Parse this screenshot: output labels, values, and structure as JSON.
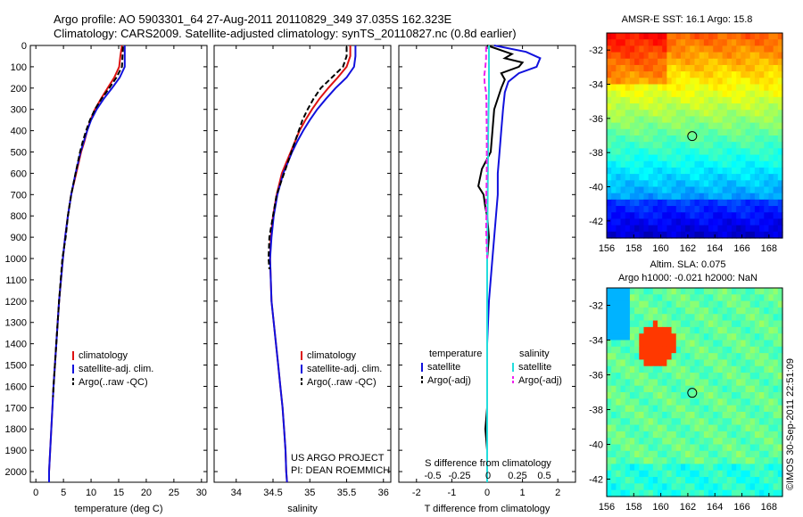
{
  "header": {
    "line1": "Argo profile: AO 5903301_64 27-Aug-2011 20110829_349 37.035S 162.323E",
    "line2": "Climatology: CARS2009. Satellite-adjusted climatology: synTS_20110827.nc (0.8d earlier)"
  },
  "side_stamp": "©IMOS 30-Sep-2011 22:51:09",
  "map_titles": {
    "sst": "AMSR-E SST: 16.1  Argo: 15.8",
    "sla_line1": "Altim. SLA: 0.075",
    "sla_line2": "Argo h1000: -0.021  h2000: NaN"
  },
  "colors": {
    "climatology": "#dd1111",
    "satellite": "#1111dd",
    "argo": "#000000",
    "sal_satellite": "#22dddd",
    "sal_argo": "#ee22ee"
  },
  "chart_data": [
    {
      "type": "line",
      "panel": "temperature",
      "xlabel": "temperature (deg C)",
      "xlim": [
        -1,
        31
      ],
      "xticks": [
        0,
        5,
        10,
        15,
        20,
        25,
        30
      ],
      "ylim": [
        2050,
        0
      ],
      "yticks": [
        0,
        100,
        200,
        300,
        400,
        500,
        600,
        700,
        800,
        900,
        1000,
        1100,
        1200,
        1300,
        1400,
        1500,
        1600,
        1700,
        1800,
        1900,
        2000
      ],
      "legend": [
        "climatology",
        "satellite-adj. clim.",
        "Argo(..raw -QC)"
      ],
      "series": [
        {
          "name": "climatology",
          "color": "#dd1111",
          "depth": [
            0,
            50,
            100,
            150,
            200,
            250,
            300,
            350,
            400,
            450,
            500,
            600,
            700,
            800,
            900,
            1000,
            1200,
            1400,
            1600,
            1800,
            2000,
            2050
          ],
          "values": [
            15.6,
            15.3,
            15.1,
            14.2,
            13.0,
            11.8,
            10.7,
            9.9,
            9.3,
            8.8,
            8.2,
            7.3,
            6.4,
            5.8,
            5.3,
            4.9,
            4.2,
            3.7,
            3.2,
            2.8,
            2.4,
            2.4
          ]
        },
        {
          "name": "satellite-adj. clim.",
          "color": "#1111dd",
          "depth": [
            0,
            50,
            100,
            150,
            200,
            250,
            300,
            350,
            400,
            450,
            500,
            600,
            700,
            800,
            900,
            1000,
            1200,
            1400,
            1600,
            1800,
            2000,
            2050
          ],
          "values": [
            16.1,
            16.1,
            16.1,
            15.2,
            13.8,
            12.3,
            11.0,
            10.0,
            9.3,
            8.7,
            8.1,
            7.2,
            6.4,
            5.8,
            5.3,
            4.9,
            4.2,
            3.7,
            3.2,
            2.8,
            2.4,
            2.4
          ]
        },
        {
          "name": "Argo(..raw -QC)",
          "color": "#000000",
          "dashed": true,
          "depth": [
            5,
            50,
            100,
            150,
            200,
            250,
            300,
            350,
            400,
            450,
            500,
            600,
            700,
            800,
            900,
            1000,
            1200,
            1400,
            1600,
            1650
          ],
          "values": [
            15.8,
            15.7,
            15.6,
            14.6,
            13.3,
            11.9,
            10.7,
            9.8,
            9.1,
            8.5,
            8.0,
            7.2,
            6.4,
            5.8,
            5.4,
            4.8,
            4.2,
            3.7,
            3.2,
            3.1
          ]
        }
      ]
    },
    {
      "type": "line",
      "panel": "salinity",
      "xlabel": "salinity",
      "xlim": [
        33.7,
        36.1
      ],
      "xticks": [
        34,
        34.5,
        35,
        35.5,
        36
      ],
      "ylim": [
        2050,
        0
      ],
      "legend": [
        "climatology",
        "satellite-adj. clim.",
        "Argo(..raw -QC)"
      ],
      "annotation": [
        "US ARGO PROJECT",
        "PI: DEAN ROEMMICH"
      ],
      "series": [
        {
          "name": "climatology",
          "color": "#dd1111",
          "depth": [
            0,
            50,
            100,
            150,
            200,
            250,
            300,
            350,
            400,
            450,
            500,
            550,
            600,
            700,
            800,
            900,
            1000,
            1100,
            1200,
            1300,
            1400,
            1500,
            1600,
            1700,
            1800,
            1900,
            2000,
            2050
          ],
          "values": [
            35.55,
            35.55,
            35.5,
            35.38,
            35.25,
            35.13,
            35.03,
            34.94,
            34.86,
            34.8,
            34.74,
            34.68,
            34.62,
            34.55,
            34.5,
            34.47,
            34.46,
            34.47,
            34.48,
            34.51,
            34.54,
            34.57,
            34.6,
            34.63,
            34.65,
            34.67,
            34.68,
            34.69
          ]
        },
        {
          "name": "satellite-adj. clim.",
          "color": "#1111dd",
          "depth": [
            0,
            50,
            100,
            150,
            200,
            250,
            300,
            350,
            400,
            450,
            500,
            550,
            600,
            700,
            800,
            900,
            1000,
            1100,
            1200,
            1300,
            1400,
            1500,
            1600,
            1700,
            1800,
            1900,
            2000,
            2050
          ],
          "values": [
            35.62,
            35.62,
            35.6,
            35.5,
            35.35,
            35.22,
            35.1,
            35.0,
            34.91,
            34.83,
            34.76,
            34.7,
            34.64,
            34.56,
            34.51,
            34.48,
            34.46,
            34.47,
            34.48,
            34.51,
            34.54,
            34.57,
            34.6,
            34.63,
            34.65,
            34.67,
            34.68,
            34.69
          ]
        },
        {
          "name": "Argo(..raw -QC)",
          "color": "#000000",
          "dashed": true,
          "depth": [
            5,
            50,
            100,
            150,
            200,
            250,
            300,
            350,
            400,
            450,
            500,
            550,
            600,
            650,
            700,
            800,
            900,
            1000,
            1050
          ],
          "values": [
            35.5,
            35.5,
            35.45,
            35.3,
            35.15,
            35.05,
            34.97,
            34.9,
            34.85,
            34.8,
            34.75,
            34.7,
            34.65,
            34.6,
            34.55,
            34.5,
            34.45,
            34.44,
            34.45
          ]
        }
      ]
    },
    {
      "type": "line",
      "panel": "difference",
      "xlabel": "T difference from climatology",
      "xlabel_top": "S difference from climatology",
      "xlim": [
        -2.5,
        2.5
      ],
      "xticks": [
        -2,
        -1,
        0,
        1,
        2
      ],
      "xticks_top": [
        -0.5,
        -0.25,
        0,
        0.25,
        0.5
      ],
      "ylim": [
        2050,
        0
      ],
      "legend_temperature": {
        "title": "temperature",
        "items": [
          "satellite",
          "Argo(-adj)"
        ]
      },
      "legend_salinity": {
        "title": "salinity",
        "items": [
          "satellite",
          "Argo(-adj)"
        ]
      },
      "series": [
        {
          "name": "T satellite",
          "color": "#1111dd",
          "depth": [
            0,
            30,
            60,
            100,
            130,
            170,
            220,
            300,
            400,
            500,
            600,
            700,
            800,
            900,
            1000,
            1200,
            1400,
            1600,
            1800,
            2000,
            2050
          ],
          "values": [
            0.2,
            1.1,
            1.5,
            1.4,
            0.9,
            0.6,
            0.5,
            0.45,
            0.4,
            0.35,
            0.3,
            0.3,
            0.25,
            0.2,
            0.15,
            0.05,
            0.0,
            0.0,
            0.0,
            0.0,
            0.0
          ]
        },
        {
          "name": "T Argo(-adj)",
          "color": "#000000",
          "depth": [
            0,
            40,
            60,
            80,
            100,
            130,
            160,
            200,
            300,
            500,
            580,
            620,
            660,
            700,
            760,
            800,
            900,
            1000,
            1100,
            1300,
            1500,
            1700,
            1800,
            1900
          ],
          "values": [
            0.0,
            0.7,
            0.5,
            1.0,
            0.9,
            0.4,
            0.5,
            0.4,
            0.2,
            0.1,
            -0.15,
            -0.2,
            -0.25,
            -0.1,
            -0.05,
            0.0,
            0.05,
            0.0,
            0.0,
            0.0,
            0.0,
            0.0,
            -0.05,
            0.0
          ]
        },
        {
          "name": "S satellite",
          "color": "#22dddd",
          "depth": [
            0,
            100,
            200,
            300,
            400,
            500,
            600,
            700,
            800,
            900,
            1000,
            1200,
            1400,
            1600,
            1800,
            2000,
            2050
          ],
          "values": [
            0.05,
            0.05,
            0.05,
            0.04,
            0.03,
            0.025,
            0.02,
            0.015,
            0.01,
            0.005,
            0.0,
            0.0,
            0.0,
            0.0,
            0.0,
            0.0,
            0.0
          ]
        },
        {
          "name": "S Argo(-adj)",
          "color": "#ee22ee",
          "dashed": true,
          "depth": [
            5,
            60,
            100,
            140,
            180,
            220,
            260,
            300,
            400,
            500,
            600,
            680,
            740,
            800,
            860,
            900,
            960,
            1000
          ],
          "values": [
            -0.03,
            -0.03,
            -0.05,
            -0.08,
            -0.07,
            -0.03,
            -0.02,
            -0.02,
            -0.01,
            -0.01,
            -0.01,
            -0.02,
            -0.03,
            -0.02,
            -0.03,
            -0.02,
            -0.01,
            0.0
          ]
        }
      ]
    },
    {
      "type": "heatmap",
      "panel": "sst-map",
      "xlim": [
        156,
        169
      ],
      "ylim": [
        -43,
        -31
      ],
      "xticks": [
        156,
        158,
        160,
        162,
        164,
        166,
        168
      ],
      "yticks": [
        -32,
        -34,
        -36,
        -38,
        -40,
        -42
      ],
      "marker": {
        "lon": 162.323,
        "lat": -37.035
      }
    },
    {
      "type": "heatmap",
      "panel": "sla-map",
      "xlim": [
        156,
        169
      ],
      "ylim": [
        -43,
        -31
      ],
      "xticks": [
        156,
        158,
        160,
        162,
        164,
        166,
        168
      ],
      "yticks": [
        -32,
        -34,
        -36,
        -38,
        -40,
        -42
      ],
      "marker": {
        "lon": 162.323,
        "lat": -37.035
      }
    }
  ]
}
